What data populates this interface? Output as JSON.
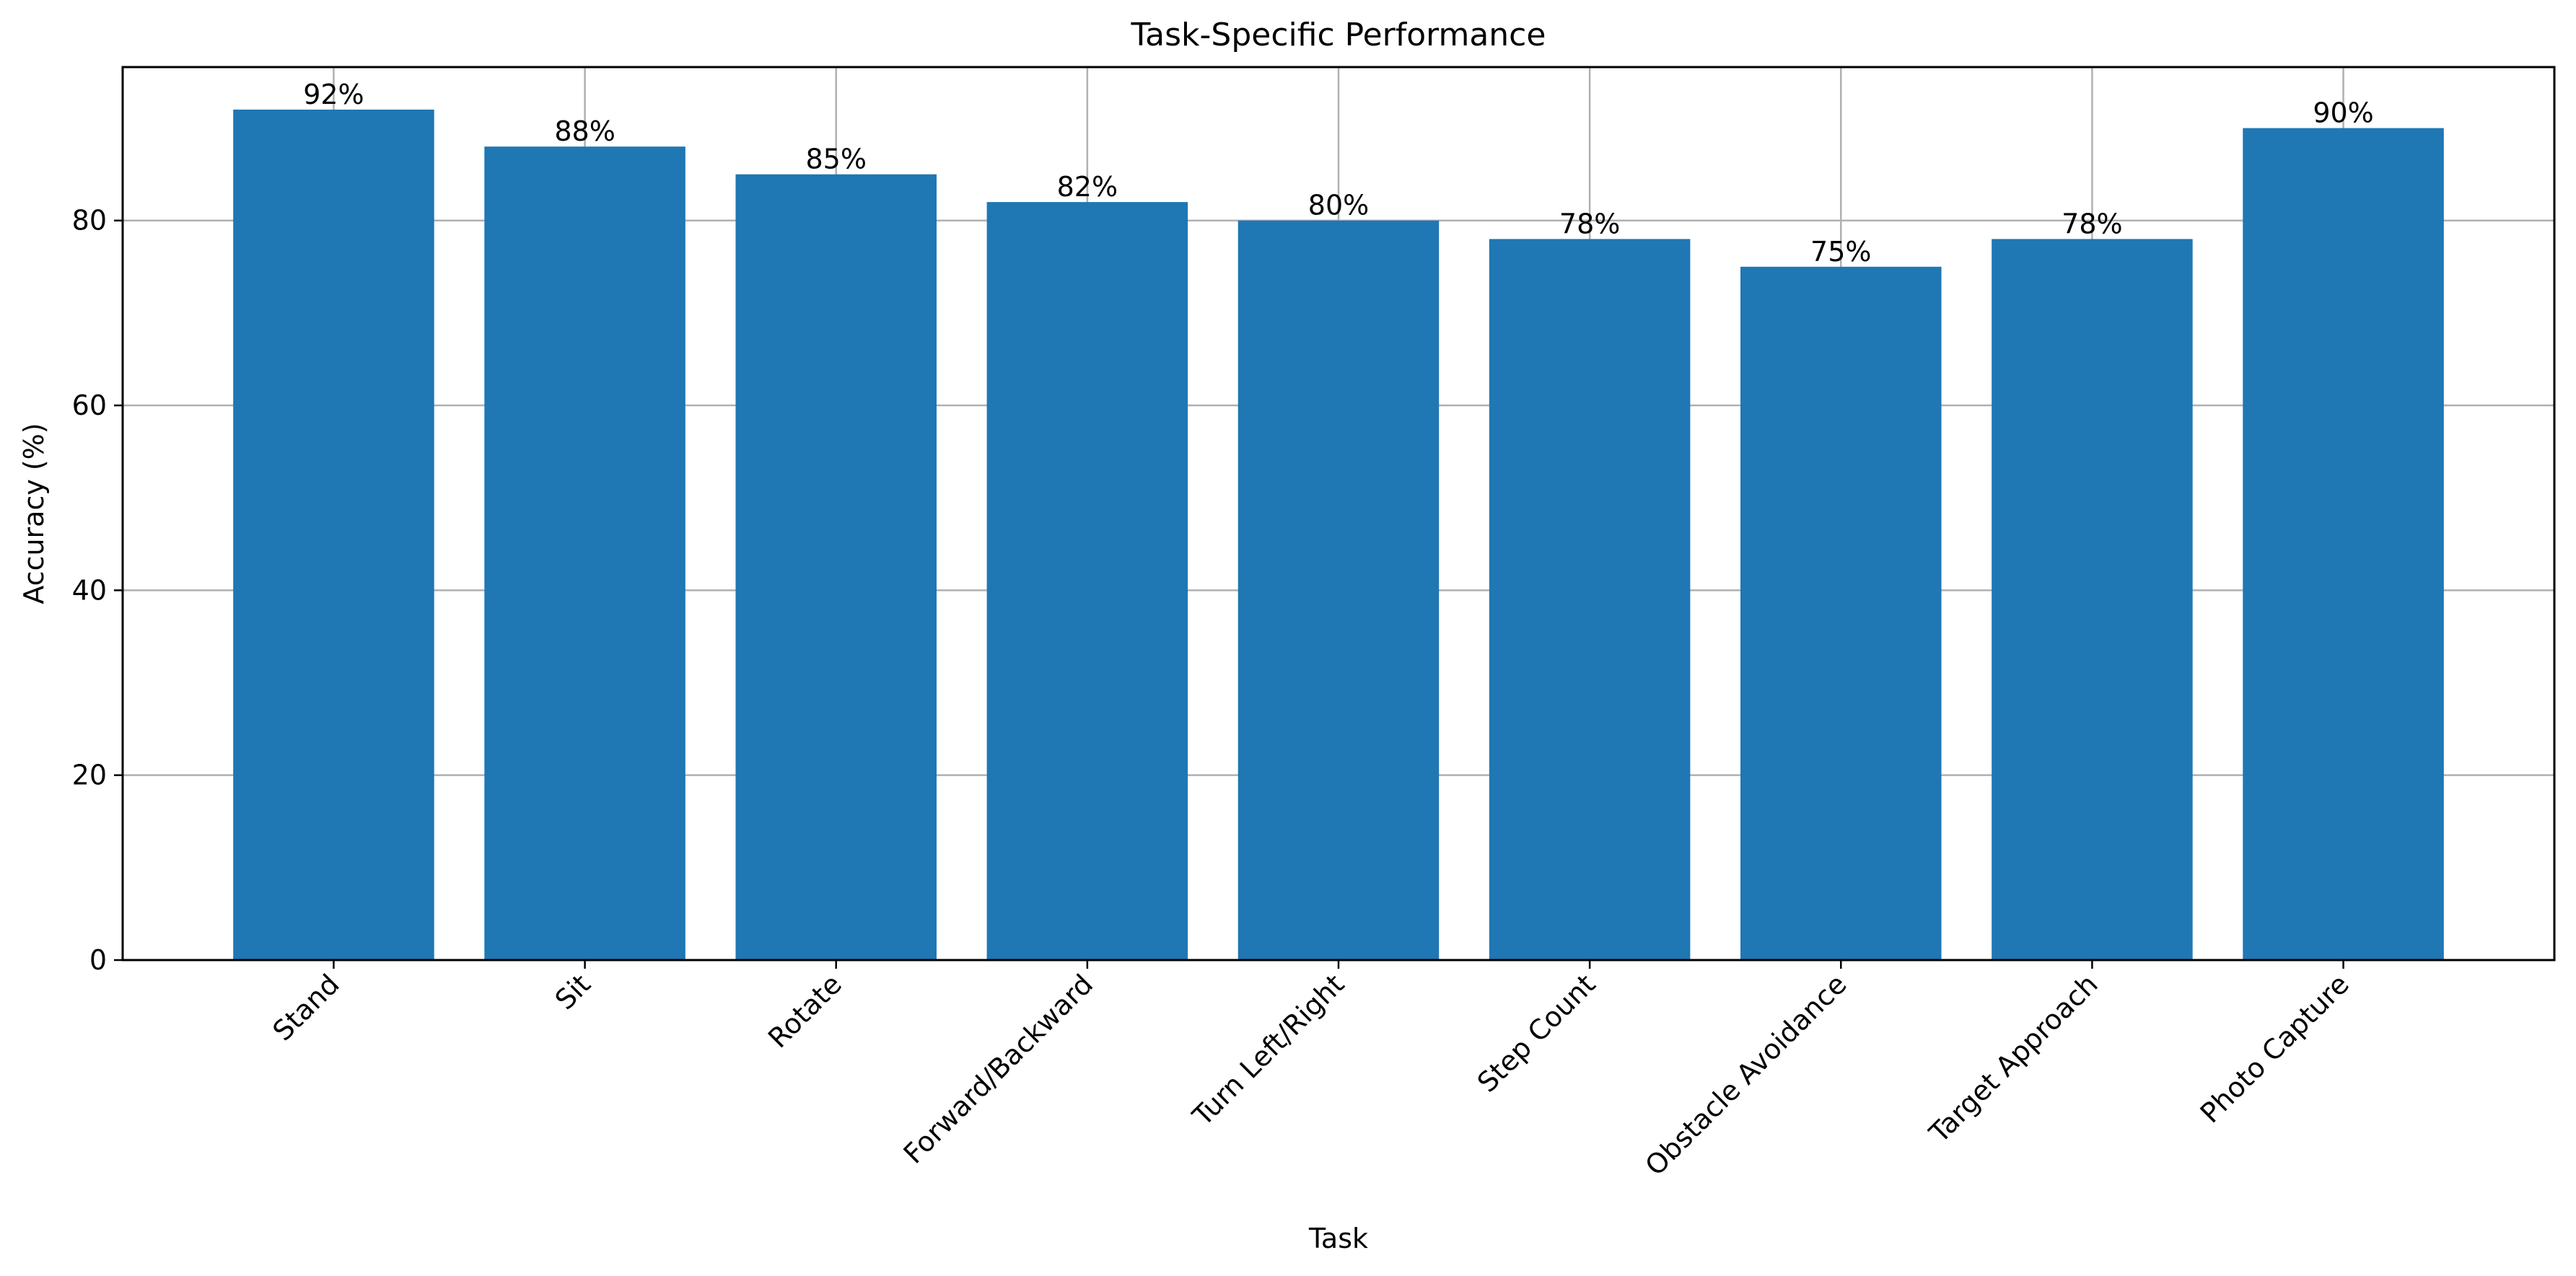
{
  "chart_data": {
    "type": "bar",
    "title": "Task-Specific Performance",
    "xlabel": "Task",
    "ylabel": "Accuracy (%)",
    "categories": [
      "Stand",
      "Sit",
      "Rotate",
      "Forward/Backward",
      "Turn Left/Right",
      "Step Count",
      "Obstacle Avoidance",
      "Target Approach",
      "Photo Capture"
    ],
    "values": [
      92,
      88,
      85,
      82,
      80,
      78,
      75,
      78,
      90
    ],
    "data_labels": [
      "92%",
      "88%",
      "85%",
      "82%",
      "80%",
      "78%",
      "75%",
      "78%",
      "90%"
    ],
    "yticks": [
      0,
      20,
      40,
      60,
      80
    ],
    "ylim": [
      0,
      96.6
    ],
    "grid": true,
    "bar_color": "#1f77b4",
    "x_tick_rotation": "45"
  }
}
